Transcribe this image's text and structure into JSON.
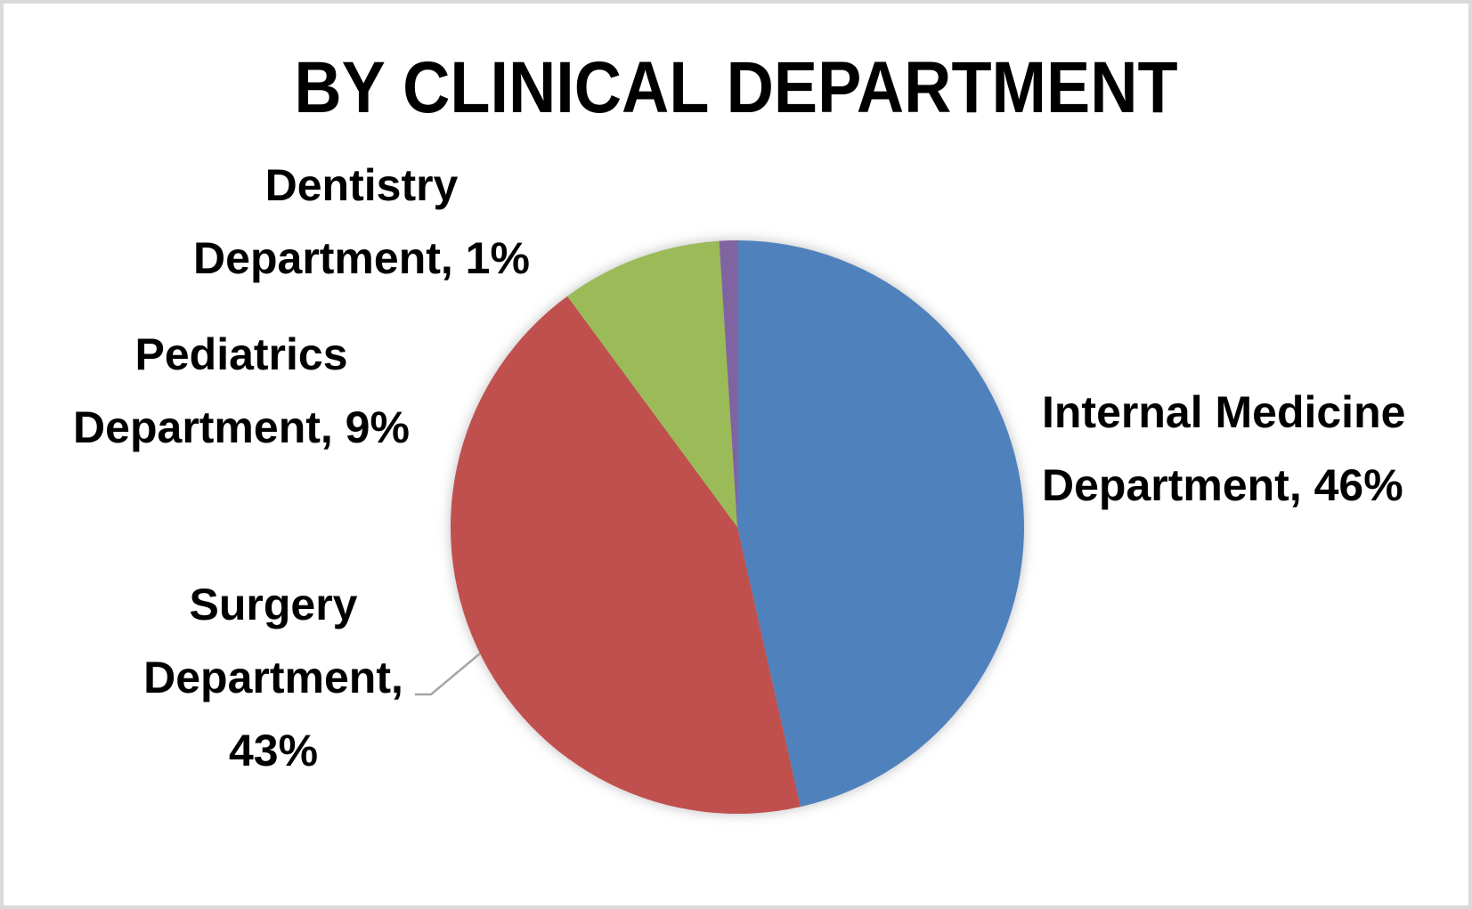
{
  "chart_data": {
    "type": "pie",
    "title": "BY CLINICAL DEPARTMENT",
    "unit": "%",
    "direction": "clockwise",
    "start_angle_deg": 0,
    "legend_position": "none",
    "labels_position": "outside",
    "slices": [
      {
        "name": "Internal Medicine Department",
        "value": 46,
        "color": "#4F81BD",
        "label_lines": [
          "Internal Medicine",
          "Department, 46%"
        ]
      },
      {
        "name": "Surgery Department",
        "value": 43,
        "color": "#C0504D",
        "label_lines": [
          "Surgery",
          "Department,",
          "43%"
        ]
      },
      {
        "name": "Pediatrics Department",
        "value": 9,
        "color": "#9BBB59",
        "label_lines": [
          "Pediatrics",
          "Department, 9%"
        ]
      },
      {
        "name": "Dentistry Department",
        "value": 1,
        "color": "#8064A2",
        "label_lines": [
          "Dentistry",
          "Department, 1%"
        ]
      }
    ],
    "leader_line": {
      "color": "#A6A6A6",
      "attached_to": "Surgery Department"
    }
  },
  "frame": {
    "background": "#FFFFFF",
    "border_color": "#D9D9D9",
    "text_color": "#000000"
  }
}
